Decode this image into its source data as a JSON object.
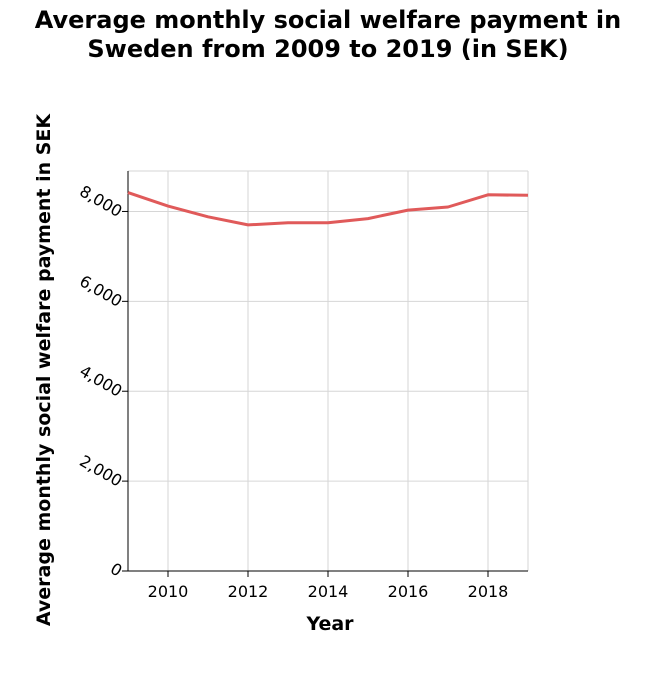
{
  "chart_data": {
    "type": "line",
    "title_lines": [
      "Average monthly social welfare payment in",
      "Sweden from 2009 to 2019 (in SEK)"
    ],
    "xlabel": "Year",
    "ylabel": "Average monthly social welfare payment in SEK",
    "xlim": [
      2009,
      2019
    ],
    "ylim": [
      0,
      8900
    ],
    "x_ticks": [
      2010,
      2012,
      2014,
      2016,
      2018
    ],
    "x_tick_labels": [
      "2010",
      "2012",
      "2014",
      "2016",
      "2018"
    ],
    "y_ticks": [
      0,
      2000,
      4000,
      6000,
      8000
    ],
    "y_tick_labels": [
      "0",
      "2,000",
      "4,000",
      "6,000",
      "8,000"
    ],
    "grid": true,
    "series": [
      {
        "color": "#e05a5a",
        "x": [
          2009,
          2010,
          2011,
          2012,
          2013,
          2014,
          2015,
          2016,
          2017,
          2018,
          2019
        ],
        "y": [
          8420,
          8120,
          7880,
          7700,
          7750,
          7750,
          7840,
          8030,
          8100,
          8370,
          8360
        ]
      }
    ]
  }
}
